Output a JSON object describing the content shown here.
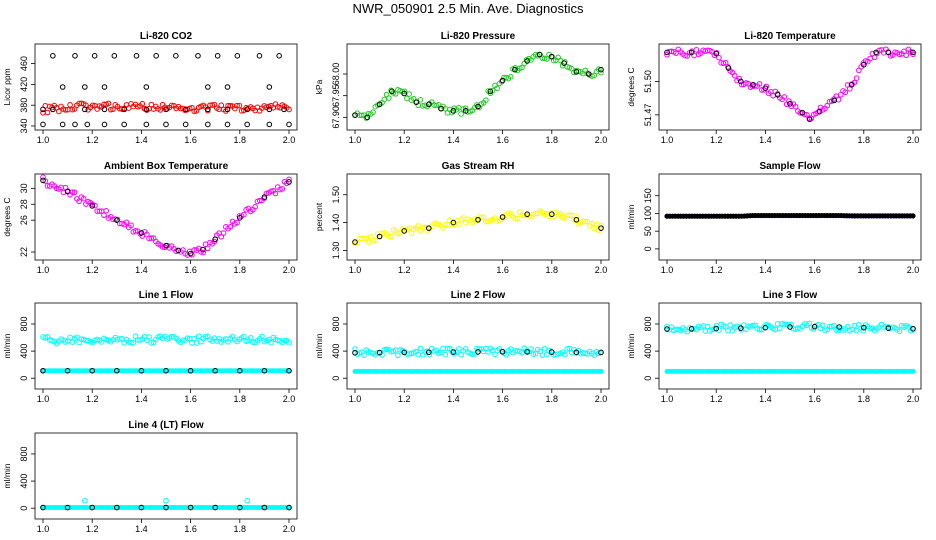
{
  "title": "NWR_050901  2.5 Min. Ave. Diagnostics",
  "colors": {
    "red": "#ff0000",
    "green": "#22cc22",
    "magenta": "#ff00ff",
    "yellow": "#ffff00",
    "cyan": "#00ffff",
    "blue": "#0000ff",
    "black": "#000000"
  },
  "chart_data": [
    {
      "type": "scatter",
      "title": "Li-820 CO2",
      "ylabel": "Licor ppm",
      "xlim": [
        1.0,
        2.0
      ],
      "ylim": [
        340,
        490
      ],
      "xticks": [
        "1.0",
        "1.2",
        "1.4",
        "1.6",
        "1.8",
        "2.0"
      ],
      "yticks": [
        "340",
        "380",
        "420",
        "460"
      ],
      "series": [
        {
          "name": "all",
          "color": "red",
          "style": "band",
          "x": [
            1.0,
            1.05,
            1.1,
            1.15,
            1.2,
            1.3,
            1.4,
            1.5,
            1.55,
            1.6,
            1.7,
            1.8,
            1.9,
            1.95,
            2.0
          ],
          "y": [
            372,
            373,
            375,
            377,
            378,
            377,
            377,
            376,
            375,
            374,
            375,
            374,
            374,
            378,
            374
          ]
        },
        {
          "name": "outliers",
          "color": "black",
          "style": "open",
          "x": [
            1.0,
            1.08,
            1.13,
            1.18,
            1.25,
            1.33,
            1.42,
            1.5,
            1.58,
            1.67,
            1.75,
            1.83,
            1.92,
            2.0,
            1.08,
            1.17,
            1.25,
            1.42,
            1.67,
            1.75,
            1.92,
            1.0,
            1.04,
            1.17,
            1.25,
            1.33,
            1.42,
            1.5,
            1.58,
            1.67,
            1.75,
            1.83,
            1.92,
            1.98,
            1.04,
            1.13,
            1.21,
            1.29,
            1.38,
            1.46,
            1.54,
            1.63,
            1.71,
            1.79,
            1.88,
            1.96
          ],
          "y": [
            343,
            343,
            343,
            343,
            343,
            343,
            343,
            343,
            343,
            343,
            343,
            343,
            343,
            343,
            415,
            415,
            415,
            415,
            415,
            415,
            415,
            372,
            372,
            372,
            372,
            372,
            372,
            372,
            372,
            372,
            372,
            372,
            372,
            372,
            475,
            475,
            475,
            475,
            475,
            475,
            475,
            475,
            475,
            475,
            475,
            475
          ]
        }
      ]
    },
    {
      "type": "scatter",
      "title": "Li-820 Pressure",
      "ylabel": "kPa",
      "xlim": [
        1.0,
        2.0
      ],
      "ylim": [
        67.88,
        68.06
      ],
      "xticks": [
        "1.0",
        "1.2",
        "1.4",
        "1.6",
        "1.8",
        "2.0"
      ],
      "yticks": [
        "67.90",
        "67.95",
        "68.00"
      ],
      "series": [
        {
          "name": "all",
          "color": "green",
          "style": "band",
          "x": [
            1.0,
            1.05,
            1.1,
            1.15,
            1.2,
            1.25,
            1.3,
            1.35,
            1.4,
            1.45,
            1.5,
            1.55,
            1.6,
            1.65,
            1.7,
            1.75,
            1.8,
            1.85,
            1.9,
            1.95,
            2.0
          ],
          "y": [
            67.905,
            67.9,
            67.93,
            67.96,
            67.955,
            67.935,
            67.93,
            67.92,
            67.915,
            67.915,
            67.925,
            67.96,
            67.985,
            68.01,
            68.03,
            68.045,
            68.04,
            68.025,
            68.005,
            68.0,
            68.01
          ]
        },
        {
          "name": "avg",
          "color": "black",
          "style": "open",
          "x": [
            1.0,
            1.05,
            1.1,
            1.15,
            1.2,
            1.25,
            1.3,
            1.35,
            1.4,
            1.45,
            1.5,
            1.55,
            1.6,
            1.65,
            1.7,
            1.75,
            1.8,
            1.85,
            1.9,
            1.95,
            2.0
          ],
          "y": [
            67.905,
            67.9,
            67.93,
            67.96,
            67.955,
            67.935,
            67.93,
            67.92,
            67.915,
            67.915,
            67.925,
            67.96,
            67.985,
            68.01,
            68.03,
            68.045,
            68.04,
            68.025,
            68.005,
            68.0,
            68.01
          ]
        }
      ]
    },
    {
      "type": "scatter",
      "title": "Li-820 Temperature",
      "ylabel": "degrees C",
      "xlim": [
        1.0,
        2.0
      ],
      "ylim": [
        51.46,
        51.53
      ],
      "xticks": [
        "1.0",
        "1.2",
        "1.4",
        "1.6",
        "1.8",
        "2.0"
      ],
      "yticks": [
        "51.47",
        "51.50"
      ],
      "series": [
        {
          "name": "all",
          "color": "magenta",
          "style": "band",
          "x": [
            1.0,
            1.1,
            1.2,
            1.25,
            1.3,
            1.35,
            1.4,
            1.45,
            1.5,
            1.55,
            1.58,
            1.62,
            1.68,
            1.75,
            1.8,
            1.85,
            1.9,
            2.0
          ],
          "y": [
            51.526,
            51.526,
            51.525,
            51.512,
            51.5,
            51.497,
            51.494,
            51.488,
            51.48,
            51.472,
            51.466,
            51.473,
            51.483,
            51.497,
            51.515,
            51.526,
            51.526,
            51.526
          ]
        },
        {
          "name": "avg",
          "color": "black",
          "style": "open",
          "x": [
            1.0,
            1.1,
            1.2,
            1.25,
            1.3,
            1.35,
            1.4,
            1.45,
            1.5,
            1.55,
            1.58,
            1.62,
            1.68,
            1.75,
            1.8,
            1.85,
            1.9,
            2.0
          ],
          "y": [
            51.526,
            51.526,
            51.525,
            51.512,
            51.5,
            51.497,
            51.494,
            51.488,
            51.48,
            51.472,
            51.466,
            51.473,
            51.483,
            51.497,
            51.515,
            51.526,
            51.526,
            51.526
          ]
        }
      ]
    },
    {
      "type": "scatter",
      "title": "Ambient Box Temperature",
      "ylabel": "degrees C",
      "xlim": [
        1.0,
        2.0
      ],
      "ylim": [
        21.5,
        31.3
      ],
      "xticks": [
        "1.0",
        "1.2",
        "1.4",
        "1.6",
        "1.8",
        "2.0"
      ],
      "yticks": [
        "22",
        "26",
        "28",
        "30"
      ],
      "series": [
        {
          "name": "all",
          "color": "magenta",
          "style": "band",
          "x": [
            1.0,
            1.1,
            1.2,
            1.3,
            1.4,
            1.5,
            1.55,
            1.6,
            1.65,
            1.7,
            1.8,
            1.9,
            2.0
          ],
          "y": [
            31.0,
            29.6,
            27.8,
            26.0,
            24.4,
            22.8,
            22.2,
            21.8,
            22.3,
            23.6,
            26.3,
            28.9,
            30.8
          ]
        },
        {
          "name": "avg",
          "color": "black",
          "style": "open",
          "x": [
            1.0,
            1.1,
            1.2,
            1.3,
            1.4,
            1.5,
            1.55,
            1.6,
            1.65,
            1.7,
            1.8,
            1.9,
            2.0
          ],
          "y": [
            31.0,
            29.6,
            27.8,
            26.0,
            24.4,
            22.8,
            22.2,
            21.8,
            22.3,
            23.6,
            26.3,
            28.9,
            30.8
          ]
        }
      ]
    },
    {
      "type": "scatter",
      "title": "Gas Stream RH",
      "ylabel": "percent",
      "xlim": [
        1.0,
        2.0
      ],
      "ylim": [
        1.28,
        1.56
      ],
      "xticks": [
        "1.0",
        "1.2",
        "1.4",
        "1.6",
        "1.8",
        "2.0"
      ],
      "yticks": [
        "1.30",
        "1.40",
        "1.50"
      ],
      "series": [
        {
          "name": "all",
          "color": "yellow",
          "style": "band",
          "x": [
            1.0,
            1.1,
            1.2,
            1.3,
            1.4,
            1.5,
            1.6,
            1.7,
            1.8,
            1.9,
            2.0
          ],
          "y": [
            1.33,
            1.35,
            1.37,
            1.38,
            1.4,
            1.41,
            1.42,
            1.43,
            1.43,
            1.41,
            1.38
          ]
        },
        {
          "name": "avg",
          "color": "black",
          "style": "open",
          "x": [
            1.0,
            1.1,
            1.2,
            1.3,
            1.4,
            1.5,
            1.6,
            1.7,
            1.8,
            1.9,
            2.0
          ],
          "y": [
            1.33,
            1.35,
            1.37,
            1.38,
            1.4,
            1.41,
            1.42,
            1.43,
            1.43,
            1.41,
            1.38
          ]
        }
      ]
    },
    {
      "type": "scatter",
      "title": "Sample Flow",
      "ylabel": "ml/min",
      "xlim": [
        1.0,
        2.0
      ],
      "ylim": [
        -20,
        200
      ],
      "xticks": [
        "1.0",
        "1.2",
        "1.4",
        "1.6",
        "1.8",
        "2.0"
      ],
      "yticks": [
        "0",
        "50",
        "100",
        "150"
      ],
      "series": [
        {
          "name": "all",
          "color": "blue",
          "style": "line",
          "x": [
            1.0,
            1.3,
            1.35,
            1.7,
            1.75,
            2.0
          ],
          "y": [
            92,
            92,
            94,
            94,
            93,
            93
          ]
        },
        {
          "name": "avg",
          "color": "black",
          "style": "line",
          "x": [
            1.0,
            1.3,
            1.35,
            1.7,
            1.75,
            2.0
          ],
          "y": [
            92,
            92,
            94,
            94,
            93,
            93
          ]
        }
      ]
    },
    {
      "type": "scatter",
      "title": "Line 1 Flow",
      "ylabel": "ml/min",
      "xlim": [
        1.0,
        2.0
      ],
      "ylim": [
        -100,
        1050
      ],
      "xticks": [
        "1.0",
        "1.2",
        "1.4",
        "1.6",
        "1.8",
        "2.0"
      ],
      "yticks": [
        "0",
        "400",
        "800"
      ],
      "series": [
        {
          "name": "all-high",
          "color": "cyan",
          "style": "band",
          "x": [
            1.0,
            1.5,
            2.0
          ],
          "y": [
            560,
            570,
            565
          ]
        },
        {
          "name": "all-low",
          "color": "cyan",
          "style": "line",
          "x": [
            1.0,
            2.0
          ],
          "y": [
            110,
            110
          ]
        },
        {
          "name": "avg",
          "color": "black",
          "style": "open",
          "x": [
            1.0,
            1.1,
            1.2,
            1.3,
            1.4,
            1.5,
            1.6,
            1.7,
            1.8,
            1.9,
            2.0
          ],
          "y": [
            110,
            110,
            110,
            110,
            110,
            110,
            110,
            110,
            110,
            110,
            110
          ]
        }
      ]
    },
    {
      "type": "scatter",
      "title": "Line 2 Flow",
      "ylabel": "ml/min",
      "xlim": [
        1.0,
        2.0
      ],
      "ylim": [
        -100,
        1050
      ],
      "xticks": [
        "1.0",
        "1.2",
        "1.4",
        "1.6",
        "1.8",
        "2.0"
      ],
      "yticks": [
        "0",
        "400",
        "800"
      ],
      "series": [
        {
          "name": "all-high",
          "color": "cyan",
          "style": "band",
          "x": [
            1.0,
            1.5,
            2.0
          ],
          "y": [
            380,
            395,
            385
          ]
        },
        {
          "name": "all-low",
          "color": "cyan",
          "style": "line",
          "x": [
            1.0,
            2.0
          ],
          "y": [
            100,
            100
          ]
        },
        {
          "name": "avg",
          "color": "black",
          "style": "open",
          "x": [
            1.0,
            1.1,
            1.2,
            1.3,
            1.4,
            1.5,
            1.6,
            1.7,
            1.8,
            1.9,
            2.0
          ],
          "y": [
            375,
            378,
            380,
            382,
            385,
            388,
            390,
            388,
            385,
            382,
            380
          ]
        }
      ]
    },
    {
      "type": "scatter",
      "title": "Line 3 Flow",
      "ylabel": "ml/min",
      "xlim": [
        1.0,
        2.0
      ],
      "ylim": [
        -100,
        1050
      ],
      "xticks": [
        "1.0",
        "1.2",
        "1.4",
        "1.6",
        "1.8",
        "2.0"
      ],
      "yticks": [
        "0",
        "400",
        "800"
      ],
      "series": [
        {
          "name": "all-high",
          "color": "cyan",
          "style": "band",
          "x": [
            1.0,
            1.5,
            2.0
          ],
          "y": [
            730,
            760,
            735
          ]
        },
        {
          "name": "all-low",
          "color": "cyan",
          "style": "line",
          "x": [
            1.0,
            2.0
          ],
          "y": [
            100,
            100
          ]
        },
        {
          "name": "avg",
          "color": "black",
          "style": "open",
          "x": [
            1.0,
            1.1,
            1.2,
            1.3,
            1.4,
            1.5,
            1.6,
            1.7,
            1.8,
            1.9,
            2.0
          ],
          "y": [
            725,
            728,
            732,
            738,
            745,
            755,
            760,
            755,
            745,
            738,
            730
          ]
        }
      ]
    },
    {
      "type": "scatter",
      "title": "Line 4 (LT) Flow",
      "ylabel": "ml/min",
      "xlim": [
        1.0,
        2.0
      ],
      "ylim": [
        -100,
        1050
      ],
      "xticks": [
        "1.0",
        "1.2",
        "1.4",
        "1.6",
        "1.8",
        "2.0"
      ],
      "yticks": [
        "0",
        "400",
        "800"
      ],
      "series": [
        {
          "name": "all",
          "color": "cyan",
          "style": "line",
          "x": [
            1.0,
            2.0
          ],
          "y": [
            10,
            10
          ]
        },
        {
          "name": "spikes",
          "color": "cyan",
          "style": "open",
          "x": [
            1.17,
            1.5,
            1.83
          ],
          "y": [
            110,
            110,
            110
          ]
        },
        {
          "name": "avg",
          "color": "black",
          "style": "open",
          "x": [
            1.0,
            1.1,
            1.2,
            1.3,
            1.4,
            1.5,
            1.6,
            1.7,
            1.8,
            1.9,
            2.0
          ],
          "y": [
            10,
            10,
            10,
            10,
            10,
            10,
            10,
            10,
            10,
            10,
            10
          ]
        }
      ]
    }
  ]
}
